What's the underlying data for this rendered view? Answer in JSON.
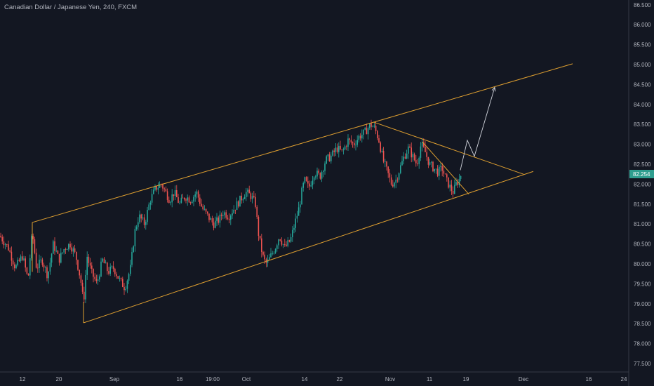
{
  "header": {
    "title": "Canadian Dollar / Japanese Yen, 240, FXCM"
  },
  "colors": {
    "background": "#131722",
    "up": "#26a69a",
    "down": "#ef5350",
    "trendline": "#e0a030",
    "arrow": "#d1d4dc",
    "price_badge": "#2f9e8f",
    "axis_text": "#b2b5be",
    "axis_line": "#363a45"
  },
  "icons": {
    "arrowhead": "arrow-icon"
  },
  "chart_data": {
    "type": "candlestick",
    "title": "Canadian Dollar / Japanese Yen, 240, FXCM",
    "symbol": "CADJPY",
    "timeframe": "240",
    "source": "FXCM",
    "last_price": "82.254",
    "ylim": [
      77.2,
      86.55
    ],
    "y_ticks": [
      "86.500",
      "86.000",
      "85.500",
      "85.000",
      "84.500",
      "84.000",
      "83.500",
      "83.000",
      "82.500",
      "82.000",
      "81.500",
      "81.000",
      "80.500",
      "80.000",
      "79.500",
      "79.000",
      "78.500",
      "78.000",
      "77.500"
    ],
    "x_ticks": [
      "12",
      "20",
      "Sep",
      "16",
      "19:00",
      "Oct",
      "14",
      "22",
      "Nov",
      "11",
      "19",
      "Dec",
      "16",
      "24"
    ],
    "price_path": [
      [
        0,
        80.7
      ],
      [
        12,
        80.4
      ],
      [
        22,
        79.9
      ],
      [
        32,
        80.2
      ],
      [
        40,
        79.6
      ],
      [
        46,
        80.8
      ],
      [
        52,
        79.9
      ],
      [
        60,
        80.1
      ],
      [
        68,
        79.7
      ],
      [
        76,
        80.5
      ],
      [
        84,
        80.1
      ],
      [
        92,
        80.4
      ],
      [
        100,
        80.5
      ],
      [
        108,
        80.2
      ],
      [
        115,
        79.6
      ],
      [
        119,
        79.0
      ],
      [
        124,
        80.2
      ],
      [
        130,
        79.8
      ],
      [
        138,
        79.5
      ],
      [
        146,
        80.1
      ],
      [
        154,
        79.8
      ],
      [
        162,
        79.9
      ],
      [
        170,
        79.6
      ],
      [
        178,
        79.4
      ],
      [
        186,
        79.9
      ],
      [
        192,
        80.8
      ],
      [
        198,
        81.2
      ],
      [
        206,
        81.0
      ],
      [
        214,
        81.6
      ],
      [
        222,
        81.9
      ],
      [
        230,
        82.0
      ],
      [
        236,
        81.8
      ],
      [
        242,
        81.6
      ],
      [
        248,
        81.8
      ],
      [
        256,
        81.5
      ],
      [
        264,
        81.7
      ],
      [
        272,
        81.6
      ],
      [
        280,
        81.8
      ],
      [
        288,
        81.4
      ],
      [
        296,
        81.2
      ],
      [
        304,
        81.0
      ],
      [
        312,
        81.1
      ],
      [
        318,
        81.3
      ],
      [
        326,
        81.2
      ],
      [
        334,
        81.4
      ],
      [
        342,
        81.6
      ],
      [
        350,
        81.8
      ],
      [
        358,
        81.7
      ],
      [
        364,
        81.5
      ],
      [
        368,
        80.8
      ],
      [
        372,
        80.4
      ],
      [
        376,
        80.1
      ],
      [
        380,
        80.0
      ],
      [
        386,
        80.2
      ],
      [
        392,
        80.4
      ],
      [
        398,
        80.7
      ],
      [
        406,
        80.4
      ],
      [
        414,
        80.6
      ],
      [
        420,
        81.0
      ],
      [
        426,
        81.4
      ],
      [
        430,
        81.8
      ],
      [
        434,
        82.1
      ],
      [
        440,
        81.9
      ],
      [
        448,
        82.3
      ],
      [
        456,
        82.2
      ],
      [
        464,
        82.6
      ],
      [
        472,
        82.7
      ],
      [
        480,
        82.9
      ],
      [
        488,
        82.8
      ],
      [
        496,
        83.1
      ],
      [
        504,
        83.0
      ],
      [
        512,
        83.2
      ],
      [
        520,
        83.3
      ],
      [
        528,
        83.5
      ],
      [
        534,
        83.4
      ],
      [
        540,
        83.1
      ],
      [
        546,
        82.6
      ],
      [
        552,
        82.3
      ],
      [
        558,
        82.0
      ],
      [
        564,
        82.1
      ],
      [
        570,
        82.4
      ],
      [
        576,
        82.7
      ],
      [
        582,
        82.9
      ],
      [
        588,
        82.7
      ],
      [
        594,
        82.5
      ],
      [
        600,
        83.0
      ],
      [
        606,
        82.8
      ],
      [
        612,
        82.5
      ],
      [
        618,
        82.4
      ],
      [
        624,
        82.3
      ],
      [
        630,
        82.4
      ],
      [
        636,
        82.1
      ],
      [
        642,
        81.9
      ],
      [
        646,
        81.8
      ],
      [
        650,
        82.0
      ],
      [
        654,
        82.1
      ],
      [
        657,
        82.254
      ]
    ],
    "annotations": [
      {
        "type": "trendline",
        "from": [
          46,
          81.04
        ],
        "to": [
          816,
          85.02
        ]
      },
      {
        "type": "trendline",
        "from": [
          119,
          78.52
        ],
        "to": [
          760,
          82.32
        ]
      },
      {
        "type": "trendline",
        "from": [
          46,
          81.04
        ],
        "to": [
          46,
          79.8
        ]
      },
      {
        "type": "trendline",
        "from": [
          119,
          79.04
        ],
        "to": [
          119,
          78.52
        ]
      },
      {
        "type": "trendline",
        "from": [
          532,
          83.56
        ],
        "to": [
          746,
          82.25
        ]
      },
      {
        "type": "trendline",
        "from": [
          602,
          83.06
        ],
        "to": [
          668,
          81.75
        ]
      },
      {
        "type": "projection",
        "points": [
          [
            656,
            82.35
          ],
          [
            666,
            83.1
          ],
          [
            676,
            82.7
          ],
          [
            705,
            84.43
          ]
        ]
      }
    ]
  }
}
